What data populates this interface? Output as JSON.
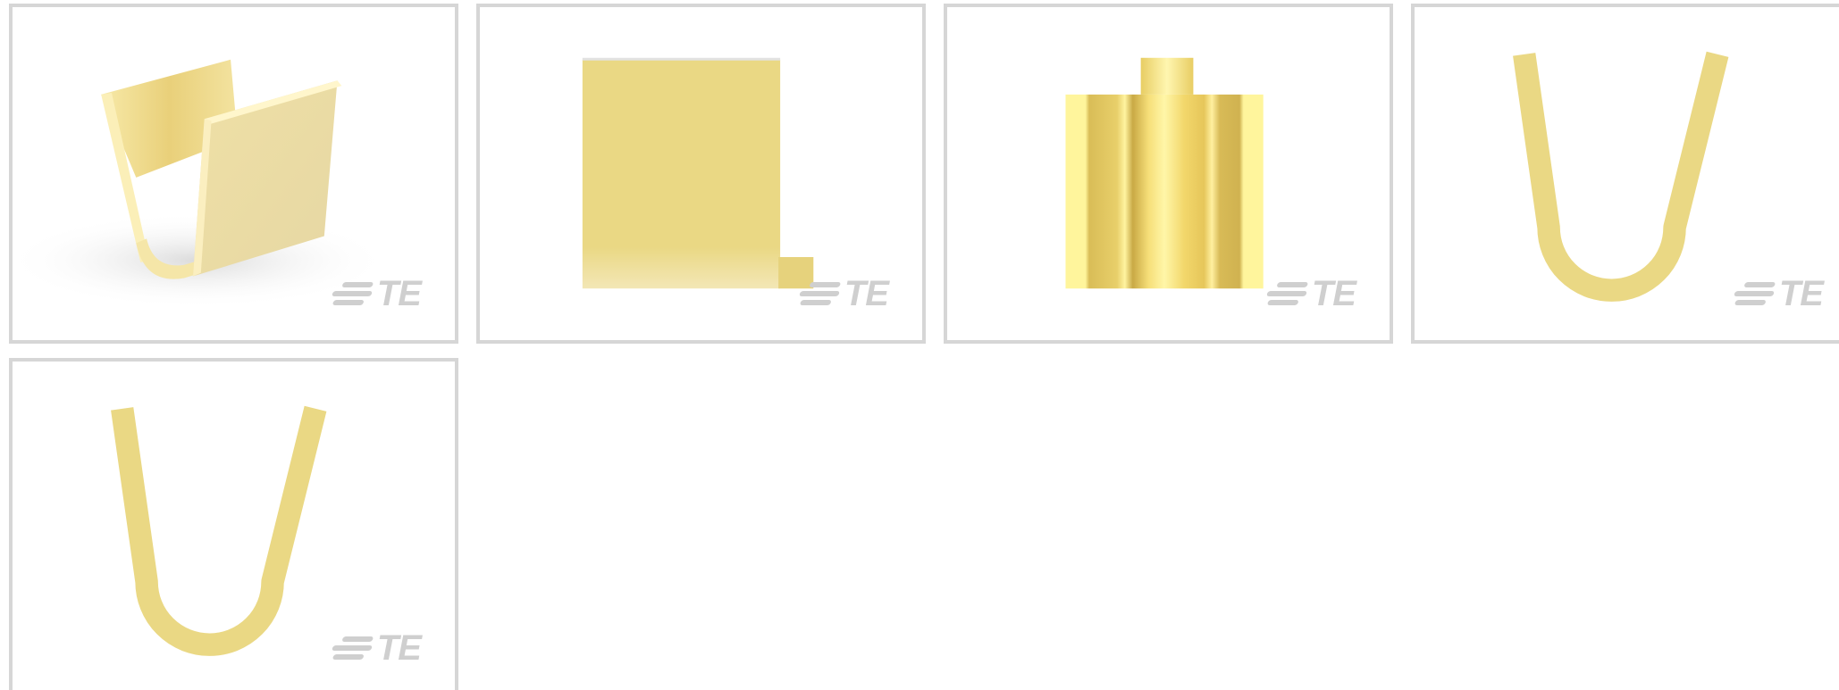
{
  "gallery": {
    "logo_text": "TE",
    "thumbnails": [
      {
        "view": "iso-3d",
        "icon": "u-channel-3d-icon"
      },
      {
        "view": "side",
        "icon": "u-channel-side-icon"
      },
      {
        "view": "front",
        "icon": "u-channel-front-icon"
      },
      {
        "view": "end",
        "icon": "u-channel-end-icon"
      },
      {
        "view": "end-alt",
        "icon": "u-channel-end-icon"
      }
    ]
  },
  "colors": {
    "border": "#d6d6d6",
    "brass_light": "#fdf3b0",
    "brass": "#ead884",
    "brass_dark": "#d9bd57",
    "logo_gray": "#cfcfcf"
  }
}
